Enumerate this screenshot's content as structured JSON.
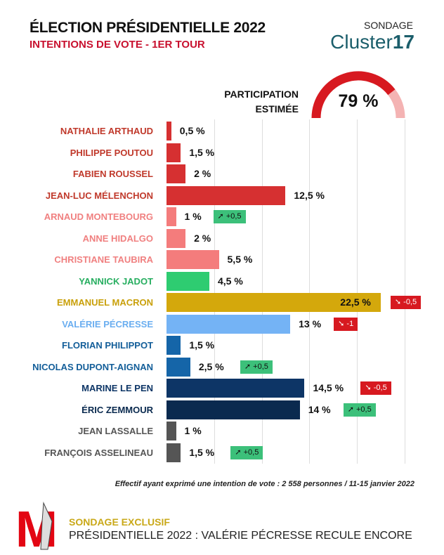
{
  "header": {
    "title": "ÉLECTION PRÉSIDENTIELLE 2022",
    "subtitle": "INTENTIONS DE VOTE - 1ER TOUR",
    "sondage": "SONDAGE",
    "brand_light": "Cluster",
    "brand_bold": "17"
  },
  "participation": {
    "label_line1": "PARTICIPATION",
    "label_line2": "ESTIMÉE",
    "value": "79 %",
    "percent": 79,
    "color": "#d71920",
    "rest_color": "#f4b3b3"
  },
  "chart_data": {
    "type": "bar",
    "orientation": "horizontal",
    "xlim": [
      0,
      25
    ],
    "grid": true,
    "categories": [
      "NATHALIE ARTHAUD",
      "PHILIPPE POUTOU",
      "FABIEN ROUSSEL",
      "JEAN-LUC MÉLENCHON",
      "ARNAUD MONTEBOURG",
      "ANNE HIDALGO",
      "CHRISTIANE TAUBIRA",
      "YANNICK JADOT",
      "EMMANUEL MACRON",
      "VALÉRIE PÉCRESSE",
      "FLORIAN PHILIPPOT",
      "NICOLAS DUPONT-AIGNAN",
      "MARINE LE PEN",
      "ÉRIC ZEMMOUR",
      "JEAN LASSALLE",
      "FRANÇOIS ASSELINEAU"
    ],
    "values": [
      0.5,
      1.5,
      2,
      12.5,
      1,
      2,
      5.5,
      4.5,
      22.5,
      13,
      1.5,
      2.5,
      14.5,
      14,
      1,
      1.5
    ],
    "value_labels": [
      "0,5 %",
      "1,5 %",
      "2 %",
      "12,5 %",
      "1 %",
      "2 %",
      "5,5 %",
      "4,5 %",
      "22,5 %",
      "13 %",
      "1,5 %",
      "2,5 %",
      "14,5 %",
      "14 %",
      "1 %",
      "1,5 %"
    ],
    "changes": [
      "",
      "",
      "",
      "",
      "+0,5",
      "",
      "",
      "",
      "-0,5",
      "-1",
      "",
      "+0,5",
      "-0,5",
      "+0,5",
      "",
      "+0,5"
    ],
    "colors": [
      "#d63031",
      "#d63031",
      "#d63031",
      "#d63031",
      "#f47c7c",
      "#f47c7c",
      "#f47c7c",
      "#2ecc71",
      "#d4a80c",
      "#74b3f5",
      "#1565a8",
      "#1565a8",
      "#0d3566",
      "#0a2a4f",
      "#555555",
      "#555555"
    ],
    "label_colors": [
      "#c0392b",
      "#c0392b",
      "#c0392b",
      "#c0392b",
      "#f08080",
      "#f08080",
      "#f08080",
      "#27ae60",
      "#c9a00a",
      "#6aaef0",
      "#135e99",
      "#135e99",
      "#0d3566",
      "#0a2a4f",
      "#555555",
      "#555555"
    ]
  },
  "footer": {
    "note": "Effectif ayant exprimé une intention de vote : 2 558 personnes / 11-15 janvier 2022",
    "exclusive": "SONDAGE EXCLUSIF",
    "headline": "PRÉSIDENTIELLE 2022 : VALÉRIE PÉCRESSE RECULE ENCORE",
    "logo_letter": "M"
  }
}
